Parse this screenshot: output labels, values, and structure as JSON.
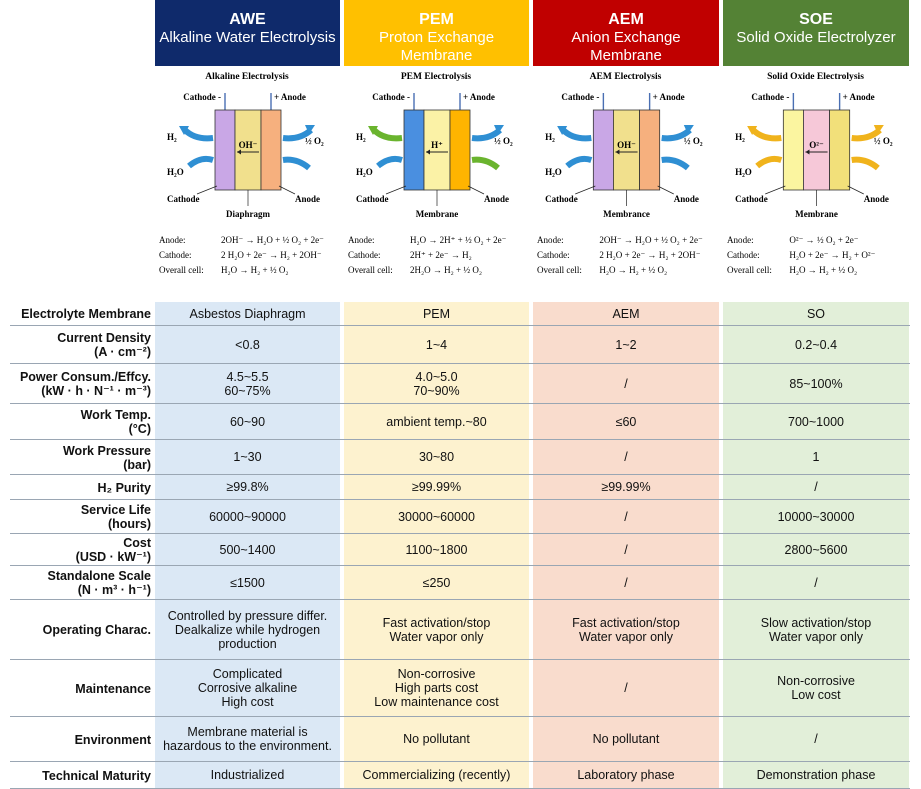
{
  "columns": [
    {
      "abbr": "AWE",
      "full": "Alkaline Water Electrolysis",
      "color": "#0f2a6b"
    },
    {
      "abbr": "PEM",
      "full": "Proton Exchange Membrane",
      "color": "#ffc000"
    },
    {
      "abbr": "AEM",
      "full": "Anion Exchange Membrane",
      "color": "#c00000"
    },
    {
      "abbr": "SOE",
      "full": "Solid Oxide Electrolyzer",
      "color": "#548235"
    }
  ],
  "diagrams": {
    "awe": {
      "title": "Alkaline Electrolysis",
      "cathode_top": "Cathode -",
      "anode_top": "+ Anode",
      "h2": "H₂",
      "h2o": "H₂O",
      "o2": "½ O₂",
      "ion": "OH⁻",
      "cathode": "Cathode",
      "anode": "Anode",
      "separator": "Diaphragm",
      "eq_anode_label": "Anode:",
      "eq_anode": "2OH⁻ → H₂O + ½ O₂ + 2e⁻",
      "eq_cathode_label": "Cathode:",
      "eq_cathode": "2 H₂O + 2e⁻ → H₂ + 2OH⁻",
      "eq_overall_label": "Overall cell:",
      "eq_overall": "H₂O → H₂ + ½ O₂"
    },
    "pem": {
      "title": "PEM Electrolysis",
      "cathode_top": "Cathode -",
      "anode_top": "+ Anode",
      "h2": "H₂",
      "h2o": "H₂O",
      "o2": "½ O₂",
      "ion": "H⁺",
      "cathode": "Cathode",
      "anode": "Anode",
      "separator": "Membrane",
      "eq_anode_label": "Anode:",
      "eq_anode": "H₂O → 2H⁺ + ½ O₂ + 2e⁻",
      "eq_cathode_label": "Cathode:",
      "eq_cathode": "2H⁺ + 2e⁻ → H₂",
      "eq_overall_label": "Overall cell:",
      "eq_overall": "2H₂O → H₂ + ½ O₂"
    },
    "aem": {
      "title": "AEM Electrolysis",
      "cathode_top": "Cathode -",
      "anode_top": "+ Anode",
      "h2": "H₂",
      "h2o": "H₂O",
      "o2": "½ O₂",
      "ion": "OH⁻",
      "cathode": "Cathode",
      "anode": "Anode",
      "separator": "Membrance",
      "eq_anode_label": "Anode:",
      "eq_anode": "2OH⁻ → H₂O + ½ O₂ + 2e⁻",
      "eq_cathode_label": "Cathode:",
      "eq_cathode": "2 H₂O + 2e⁻ → H₂ + 2OH⁻",
      "eq_overall_label": "Overall cell:",
      "eq_overall": "H₂O → H₂ + ½ O₂"
    },
    "soe": {
      "title": "Solid Oxide Electrolysis",
      "cathode_top": "Cathode -",
      "anode_top": "+ Anode",
      "h2": "H₂",
      "h2o": "H₂O",
      "o2": "½ O₂",
      "ion": "O²⁻",
      "cathode": "Cathode",
      "anode": "Anode",
      "separator": "Membrane",
      "eq_anode_label": "Anode:",
      "eq_anode": "O²⁻ → ½ O₂ + 2e⁻",
      "eq_cathode_label": "Cathode:",
      "eq_cathode": "H₂O + 2e⁻ → H₂ + O²⁻",
      "eq_overall_label": "Overall cell:",
      "eq_overall": "H₂O → H₂ + ½ O₂"
    }
  },
  "rows": [
    {
      "label": [
        "Electrolyte Membrane"
      ],
      "values": [
        [
          "Asbestos Diaphragm"
        ],
        [
          "PEM"
        ],
        [
          "AEM"
        ],
        [
          "SO"
        ]
      ]
    },
    {
      "label": [
        "Current Density",
        "(A · cm⁻²)"
      ],
      "values": [
        [
          "<0.8"
        ],
        [
          "1~4"
        ],
        [
          "1~2"
        ],
        [
          "0.2~0.4"
        ]
      ]
    },
    {
      "label": [
        "Power Consum./Effcy.",
        "(kW · h · N⁻¹ · m⁻³)"
      ],
      "values": [
        [
          "4.5~5.5",
          "60~75%"
        ],
        [
          "4.0~5.0",
          "70~90%"
        ],
        [
          "/"
        ],
        [
          "85~100%"
        ]
      ]
    },
    {
      "label": [
        "Work Temp.",
        "(°C)"
      ],
      "values": [
        [
          "60~90"
        ],
        [
          "ambient temp.~80"
        ],
        [
          "≤60"
        ],
        [
          "700~1000"
        ]
      ]
    },
    {
      "label": [
        "Work Pressure",
        "(bar)"
      ],
      "values": [
        [
          "1~30"
        ],
        [
          "30~80"
        ],
        [
          "/"
        ],
        [
          "1"
        ]
      ]
    },
    {
      "label": [
        "H₂ Purity"
      ],
      "values": [
        [
          "≥99.8%"
        ],
        [
          "≥99.99%"
        ],
        [
          "≥99.99%"
        ],
        [
          "/"
        ]
      ]
    },
    {
      "label": [
        "Service Life",
        "(hours)"
      ],
      "values": [
        [
          "60000~90000"
        ],
        [
          "30000~60000"
        ],
        [
          "/"
        ],
        [
          "10000~30000"
        ]
      ]
    },
    {
      "label": [
        "Cost",
        "(USD · kW⁻¹)"
      ],
      "values": [
        [
          "500~1400"
        ],
        [
          "1100~1800"
        ],
        [
          "/"
        ],
        [
          "2800~5600"
        ]
      ]
    },
    {
      "label": [
        "Standalone Scale",
        "(N · m³ · h⁻¹)"
      ],
      "values": [
        [
          "≤1500"
        ],
        [
          "≤250"
        ],
        [
          "/"
        ],
        [
          "/"
        ]
      ]
    },
    {
      "label": [
        "Operating Charac."
      ],
      "values": [
        [
          "Controlled by pressure differ.",
          "Dealkalize while hydrogen",
          "production"
        ],
        [
          "Fast activation/stop",
          "Water vapor only"
        ],
        [
          "Fast activation/stop",
          "Water vapor only"
        ],
        [
          "Slow activation/stop",
          "Water vapor only"
        ]
      ]
    },
    {
      "label": [
        "Maintenance"
      ],
      "values": [
        [
          "Complicated",
          "Corrosive alkaline",
          "High cost"
        ],
        [
          "Non-corrosive",
          "High parts cost",
          "Low maintenance cost"
        ],
        [
          "/"
        ],
        [
          "Non-corrosive",
          "Low cost"
        ]
      ]
    },
    {
      "label": [
        "Environment"
      ],
      "values": [
        [
          "Membrane material is",
          "hazardous to the environment."
        ],
        [
          "No pollutant"
        ],
        [
          "No pollutant"
        ],
        [
          "/"
        ]
      ]
    },
    {
      "label": [
        "Technical Maturity"
      ],
      "values": [
        [
          "Industrialized"
        ],
        [
          "Commercializing (recently)"
        ],
        [
          "Laboratory phase"
        ],
        [
          "Demonstration phase"
        ]
      ]
    }
  ]
}
